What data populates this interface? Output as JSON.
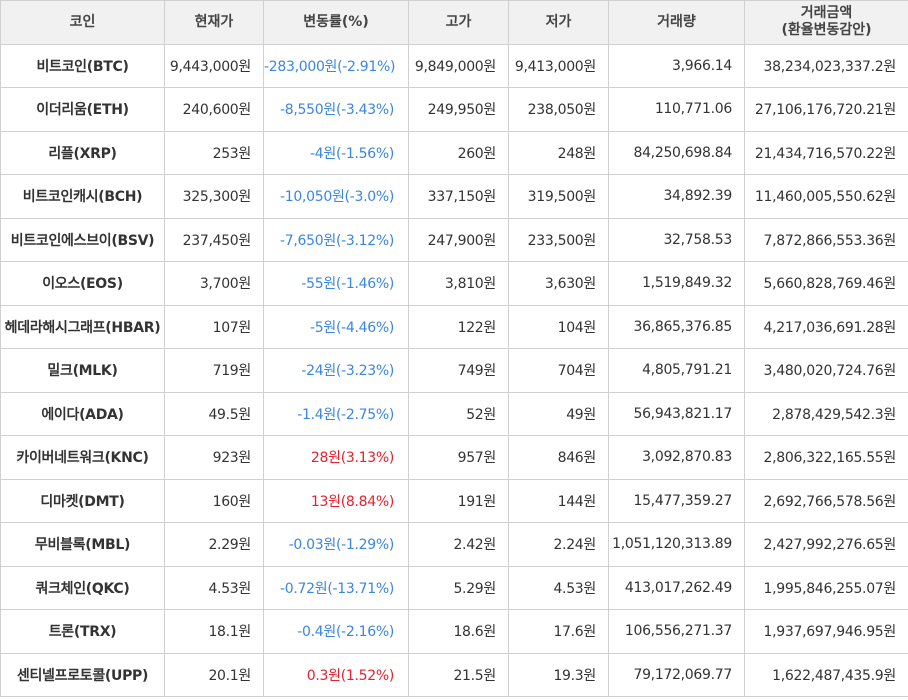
{
  "headers": [
    "코인",
    "현재가",
    "변동률(%)",
    "고가",
    "저가",
    "거래량",
    "거래금액",
    "(환율변동감안)"
  ],
  "colors": {
    "down": "#3b86e0",
    "up": "#e8202e",
    "header_bg": "#f1f1f1",
    "border": "#d0d0d0"
  },
  "rows": [
    {
      "name": "비트코인(BTC)",
      "price": "9,443,000원",
      "change": "-283,000원(-2.91%)",
      "dir": "down",
      "high": "9,849,000원",
      "low": "9,413,000원",
      "volume": "3,966.14",
      "amount": "38,234,023,337.2원"
    },
    {
      "name": "이더리움(ETH)",
      "price": "240,600원",
      "change": "-8,550원(-3.43%)",
      "dir": "down",
      "high": "249,950원",
      "low": "238,050원",
      "volume": "110,771.06",
      "amount": "27,106,176,720.21원"
    },
    {
      "name": "리플(XRP)",
      "price": "253원",
      "change": "-4원(-1.56%)",
      "dir": "down",
      "high": "260원",
      "low": "248원",
      "volume": "84,250,698.84",
      "amount": "21,434,716,570.22원"
    },
    {
      "name": "비트코인캐시(BCH)",
      "price": "325,300원",
      "change": "-10,050원(-3.0%)",
      "dir": "down",
      "high": "337,150원",
      "low": "319,500원",
      "volume": "34,892.39",
      "amount": "11,460,005,550.62원"
    },
    {
      "name": "비트코인에스브이(BSV)",
      "price": "237,450원",
      "change": "-7,650원(-3.12%)",
      "dir": "down",
      "high": "247,900원",
      "low": "233,500원",
      "volume": "32,758.53",
      "amount": "7,872,866,553.36원"
    },
    {
      "name": "이오스(EOS)",
      "price": "3,700원",
      "change": "-55원(-1.46%)",
      "dir": "down",
      "high": "3,810원",
      "low": "3,630원",
      "volume": "1,519,849.32",
      "amount": "5,660,828,769.46원"
    },
    {
      "name": "헤데라해시그래프(HBAR)",
      "price": "107원",
      "change": "-5원(-4.46%)",
      "dir": "down",
      "high": "122원",
      "low": "104원",
      "volume": "36,865,376.85",
      "amount": "4,217,036,691.28원"
    },
    {
      "name": "밀크(MLK)",
      "price": "719원",
      "change": "-24원(-3.23%)",
      "dir": "down",
      "high": "749원",
      "low": "704원",
      "volume": "4,805,791.21",
      "amount": "3,480,020,724.76원"
    },
    {
      "name": "에이다(ADA)",
      "price": "49.5원",
      "change": "-1.4원(-2.75%)",
      "dir": "down",
      "high": "52원",
      "low": "49원",
      "volume": "56,943,821.17",
      "amount": "2,878,429,542.3원"
    },
    {
      "name": "카이버네트워크(KNC)",
      "price": "923원",
      "change": "28원(3.13%)",
      "dir": "up",
      "high": "957원",
      "low": "846원",
      "volume": "3,092,870.83",
      "amount": "2,806,322,165.55원"
    },
    {
      "name": "디마켓(DMT)",
      "price": "160원",
      "change": "13원(8.84%)",
      "dir": "up",
      "high": "191원",
      "low": "144원",
      "volume": "15,477,359.27",
      "amount": "2,692,766,578.56원"
    },
    {
      "name": "무비블록(MBL)",
      "price": "2.29원",
      "change": "-0.03원(-1.29%)",
      "dir": "down",
      "high": "2.42원",
      "low": "2.24원",
      "volume": "1,051,120,313.89",
      "amount": "2,427,992,276.65원"
    },
    {
      "name": "쿼크체인(QKC)",
      "price": "4.53원",
      "change": "-0.72원(-13.71%)",
      "dir": "down",
      "high": "5.29원",
      "low": "4.53원",
      "volume": "413,017,262.49",
      "amount": "1,995,846,255.07원"
    },
    {
      "name": "트론(TRX)",
      "price": "18.1원",
      "change": "-0.4원(-2.16%)",
      "dir": "down",
      "high": "18.6원",
      "low": "17.6원",
      "volume": "106,556,271.37",
      "amount": "1,937,697,946.95원"
    },
    {
      "name": "센티넬프로토콜(UPP)",
      "price": "20.1원",
      "change": "0.3원(1.52%)",
      "dir": "up",
      "high": "21.5원",
      "low": "19.3원",
      "volume": "79,172,069.77",
      "amount": "1,622,487,435.9원"
    }
  ]
}
